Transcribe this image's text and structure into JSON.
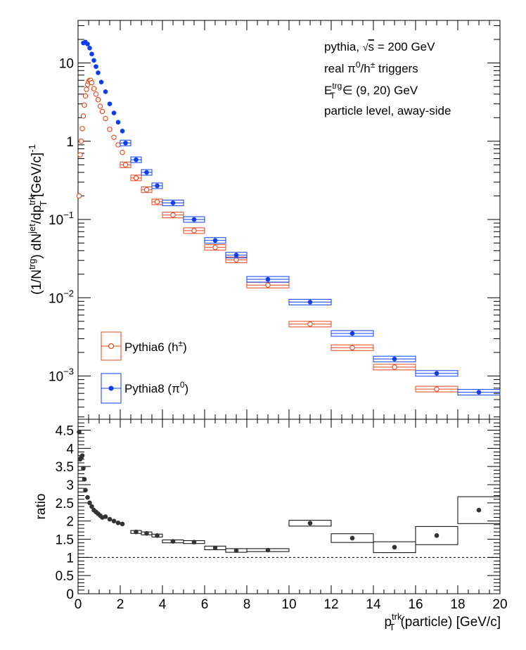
{
  "chart_data": [
    {
      "type": "scatter",
      "panel": "top",
      "yscale": "log",
      "ylim": [
        0.00028,
        35
      ],
      "xlim": [
        0,
        20
      ],
      "ylabel": "(1/N^trg) dN^jet/dp_T^trk [GeV/c]^-1",
      "yticks": [
        {
          "v": 0.001,
          "m": "10",
          "e": "−3"
        },
        {
          "v": 0.01,
          "m": "10",
          "e": "−2"
        },
        {
          "v": 0.1,
          "m": "10",
          "e": "−1"
        },
        {
          "v": 1,
          "m": "1",
          "e": ""
        },
        {
          "v": 10,
          "m": "10",
          "e": ""
        }
      ],
      "annotations": [
        "pythia, √s = 200 GeV",
        "real π⁰/h± triggers",
        "E_T^trg ∈ (9, 20) GeV",
        "particle level, away-side"
      ],
      "series": [
        {
          "name": "Pythia6 (h±)",
          "color": "#e8461a",
          "marker": "open-circle",
          "points": [
            {
              "x": 0.05,
              "y": 0.2
            },
            {
              "x": 0.1,
              "y": 0.67
            },
            {
              "x": 0.15,
              "y": 1.0
            },
            {
              "x": 0.2,
              "y": 1.45
            },
            {
              "x": 0.25,
              "y": 2.1
            },
            {
              "x": 0.3,
              "y": 2.9
            },
            {
              "x": 0.35,
              "y": 3.8
            },
            {
              "x": 0.4,
              "y": 4.6
            },
            {
              "x": 0.45,
              "y": 5.3
            },
            {
              "x": 0.5,
              "y": 5.8
            },
            {
              "x": 0.55,
              "y": 6.0
            },
            {
              "x": 0.6,
              "y": 6.0
            },
            {
              "x": 0.65,
              "y": 5.6
            },
            {
              "x": 0.75,
              "y": 4.7
            },
            {
              "x": 0.85,
              "y": 4.0
            },
            {
              "x": 0.95,
              "y": 3.4
            },
            {
              "x": 1.05,
              "y": 2.8
            },
            {
              "x": 1.15,
              "y": 2.4
            },
            {
              "x": 1.3,
              "y": 1.95
            },
            {
              "x": 1.5,
              "y": 1.42
            },
            {
              "x": 1.7,
              "y": 1.12
            },
            {
              "x": 1.9,
              "y": 0.9
            },
            {
              "x": 2.1,
              "y": 0.72
            },
            {
              "x": 2.25,
              "y": 0.5,
              "w": 0.25
            },
            {
              "x": 2.75,
              "y": 0.34,
              "w": 0.25
            },
            {
              "x": 3.25,
              "y": 0.24,
              "w": 0.25
            },
            {
              "x": 3.75,
              "y": 0.168,
              "w": 0.25
            },
            {
              "x": 4.5,
              "y": 0.114,
              "w": 0.5
            },
            {
              "x": 5.5,
              "y": 0.072,
              "w": 0.5
            },
            {
              "x": 6.5,
              "y": 0.044,
              "w": 0.5
            },
            {
              "x": 7.5,
              "y": 0.0305,
              "w": 0.5
            },
            {
              "x": 9,
              "y": 0.0145,
              "w": 1
            },
            {
              "x": 11,
              "y": 0.0046,
              "w": 1
            },
            {
              "x": 13,
              "y": 0.0023,
              "w": 1
            },
            {
              "x": 15,
              "y": 0.0013,
              "w": 1
            },
            {
              "x": 17,
              "y": 0.00068,
              "w": 1
            }
          ]
        },
        {
          "name": "Pythia8 (π⁰)",
          "color": "#0a3df5",
          "marker": "filled-circle",
          "points": [
            {
              "x": 0.25,
              "y": 18.0
            },
            {
              "x": 0.35,
              "y": 18.5
            },
            {
              "x": 0.45,
              "y": 17.5
            },
            {
              "x": 0.55,
              "y": 15.5
            },
            {
              "x": 0.65,
              "y": 13.0
            },
            {
              "x": 0.75,
              "y": 10.8
            },
            {
              "x": 0.85,
              "y": 9.0
            },
            {
              "x": 0.95,
              "y": 7.5
            },
            {
              "x": 1.1,
              "y": 5.7
            },
            {
              "x": 1.3,
              "y": 4.3
            },
            {
              "x": 1.5,
              "y": 3.0
            },
            {
              "x": 1.7,
              "y": 2.3
            },
            {
              "x": 1.9,
              "y": 1.75
            },
            {
              "x": 2.1,
              "y": 1.35
            },
            {
              "x": 2.25,
              "y": 0.95,
              "w": 0.25
            },
            {
              "x": 2.75,
              "y": 0.58,
              "w": 0.25
            },
            {
              "x": 3.25,
              "y": 0.4,
              "w": 0.25
            },
            {
              "x": 3.75,
              "y": 0.27,
              "w": 0.25
            },
            {
              "x": 4.5,
              "y": 0.163,
              "w": 0.5
            },
            {
              "x": 5.5,
              "y": 0.1,
              "w": 0.5
            },
            {
              "x": 6.5,
              "y": 0.054,
              "w": 0.5
            },
            {
              "x": 7.5,
              "y": 0.035,
              "w": 0.5
            },
            {
              "x": 9,
              "y": 0.0172,
              "w": 1
            },
            {
              "x": 11,
              "y": 0.0088,
              "w": 1
            },
            {
              "x": 13,
              "y": 0.0035,
              "w": 1
            },
            {
              "x": 15,
              "y": 0.00165,
              "w": 1
            },
            {
              "x": 17,
              "y": 0.00108,
              "w": 1
            },
            {
              "x": 19,
              "y": 0.00062,
              "w": 1
            }
          ]
        }
      ]
    },
    {
      "type": "scatter",
      "panel": "bottom",
      "xlabel": "p_T^trk(particle) [GeV/c]",
      "ylabel": "ratio",
      "xlim": [
        0,
        20
      ],
      "ylim": [
        0,
        4.8
      ],
      "xticks": [
        0,
        2,
        4,
        6,
        8,
        10,
        12,
        14,
        16,
        18,
        20
      ],
      "yticks": [
        {
          "v": 0,
          "label": "0"
        },
        {
          "v": 0.5,
          "label": "0.5"
        },
        {
          "v": 1,
          "label": "1"
        },
        {
          "v": 1.5,
          "label": "1.5"
        },
        {
          "v": 2,
          "label": "2"
        },
        {
          "v": 2.5,
          "label": "2.5"
        },
        {
          "v": 3,
          "label": "3"
        },
        {
          "v": 3.5,
          "label": "3.5"
        },
        {
          "v": 4,
          "label": "4"
        },
        {
          "v": 4.5,
          "label": "4.5"
        }
      ],
      "reference_line": 1,
      "series": [
        {
          "name": "ratio",
          "color": "#333333",
          "marker": "filled-circle",
          "points": [
            {
              "x": 0.05,
              "y": 4.45
            },
            {
              "x": 0.1,
              "y": 3.7
            },
            {
              "x": 0.15,
              "y": 3.75
            },
            {
              "x": 0.2,
              "y": 3.8
            },
            {
              "x": 0.25,
              "y": 3.45
            },
            {
              "x": 0.3,
              "y": 3.15
            },
            {
              "x": 0.35,
              "y": 2.85
            },
            {
              "x": 0.45,
              "y": 2.65
            },
            {
              "x": 0.55,
              "y": 2.5
            },
            {
              "x": 0.65,
              "y": 2.4
            },
            {
              "x": 0.75,
              "y": 2.3
            },
            {
              "x": 0.85,
              "y": 2.25
            },
            {
              "x": 0.95,
              "y": 2.2
            },
            {
              "x": 1.05,
              "y": 2.15
            },
            {
              "x": 1.15,
              "y": 2.1
            },
            {
              "x": 1.3,
              "y": 2.12
            },
            {
              "x": 1.5,
              "y": 2.05
            },
            {
              "x": 1.7,
              "y": 2.0
            },
            {
              "x": 1.9,
              "y": 1.95
            },
            {
              "x": 2.1,
              "y": 1.92
            },
            {
              "x": 2.75,
              "y": 1.7,
              "w": 0.25,
              "h": 0.04
            },
            {
              "x": 3.25,
              "y": 1.66,
              "w": 0.25,
              "h": 0.04
            },
            {
              "x": 3.75,
              "y": 1.6,
              "w": 0.25,
              "h": 0.04
            },
            {
              "x": 4.5,
              "y": 1.44,
              "w": 0.5,
              "h": 0.04
            },
            {
              "x": 5.5,
              "y": 1.42,
              "w": 0.5,
              "h": 0.04
            },
            {
              "x": 6.5,
              "y": 1.26,
              "w": 0.5,
              "h": 0.05
            },
            {
              "x": 7.5,
              "y": 1.19,
              "w": 0.5,
              "h": 0.05
            },
            {
              "x": 9,
              "y": 1.2,
              "w": 1,
              "h": 0.04
            },
            {
              "x": 11,
              "y": 1.94,
              "w": 1,
              "h": 0.08
            },
            {
              "x": 13,
              "y": 1.53,
              "w": 1,
              "h": 0.12
            },
            {
              "x": 15,
              "y": 1.28,
              "w": 1,
              "h": 0.15
            },
            {
              "x": 17,
              "y": 1.6,
              "w": 1,
              "h": 0.25
            },
            {
              "x": 19,
              "y": 2.3,
              "w": 1,
              "h": 0.37
            }
          ]
        }
      ]
    }
  ]
}
